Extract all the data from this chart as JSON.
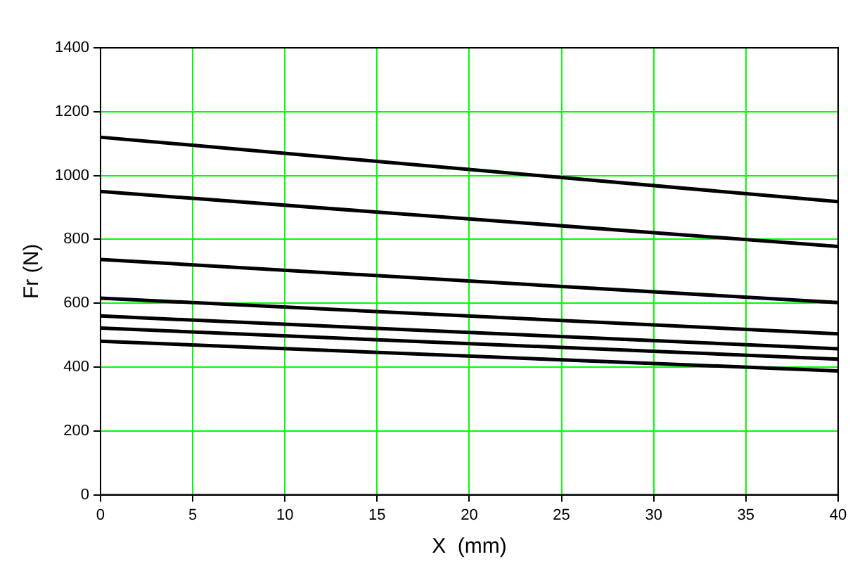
{
  "chart_data": {
    "type": "line",
    "xlabel": "X  (mm)",
    "ylabel": "Fr (N)",
    "x": [
      0,
      40
    ],
    "series": [
      {
        "color": "#000000",
        "values": [
          1120,
          918
        ]
      },
      {
        "color": "#000000",
        "values": [
          950,
          778
        ]
      },
      {
        "color": "#000000",
        "values": [
          737,
          602
        ]
      },
      {
        "color": "#000000",
        "values": [
          616,
          504
        ]
      },
      {
        "color": "#000000",
        "values": [
          560,
          457
        ]
      },
      {
        "color": "#000000",
        "values": [
          522,
          425
        ]
      },
      {
        "color": "#000000",
        "values": [
          481,
          388
        ]
      }
    ],
    "xlim": [
      0,
      40
    ],
    "xticks": [
      0,
      5,
      10,
      15,
      20,
      25,
      30,
      35,
      40
    ],
    "ylim": [
      0,
      1400
    ],
    "yticks": [
      0,
      200,
      400,
      600,
      800,
      1000,
      1200,
      1400
    ],
    "grid": true,
    "marker": "none",
    "line_style": "solid",
    "legend": false
  }
}
